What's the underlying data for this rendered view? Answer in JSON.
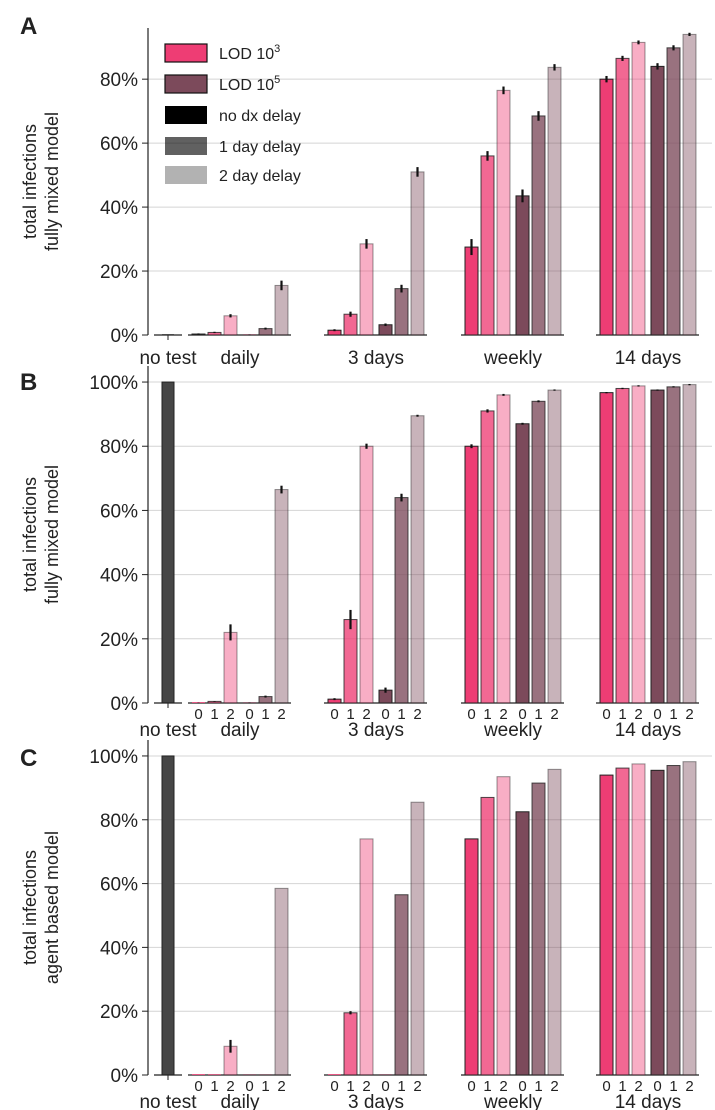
{
  "colors": {
    "lod3": "#ee3d74",
    "lod5": "#7c4a5b",
    "notest": "#464646",
    "grid": "#d4d4d4",
    "axis": "#222222"
  },
  "legend": {
    "entries": [
      {
        "label": "LOD 10",
        "sup": "3"
      },
      {
        "label": "LOD 10",
        "sup": "5"
      },
      {
        "label": "no dx delay"
      },
      {
        "label": "1 day delay"
      },
      {
        "label": "2 day delay"
      }
    ]
  },
  "chart_data": [
    {
      "panel": "A",
      "type": "bar",
      "ylabel": [
        "total infections",
        "fully mixed model"
      ],
      "ylim": [
        0,
        0.96
      ],
      "yticks": [
        0,
        0.2,
        0.4,
        0.6,
        0.8
      ],
      "yticklabels": [
        "0%",
        "20%",
        "40%",
        "60%",
        "80%"
      ],
      "grid": true,
      "legend_position": "top-left",
      "groups": [
        "no test",
        "daily",
        "3 days",
        "weekly",
        "14 days"
      ],
      "delay_labels": [],
      "no_test": {
        "value": 0.0,
        "err": 0
      },
      "series": [
        {
          "name": "LOD 10^3",
          "delay_days": [
            0,
            1,
            2
          ],
          "values": [
            [
              0.003,
              0.008,
              0.06
            ],
            [
              0.015,
              0.065,
              0.285
            ],
            [
              0.275,
              0.56,
              0.765
            ],
            [
              0.8,
              0.865,
              0.915
            ]
          ],
          "errors": [
            [
              0.002,
              0.002,
              0.005
            ],
            [
              0.003,
              0.008,
              0.015
            ],
            [
              0.025,
              0.015,
              0.012
            ],
            [
              0.01,
              0.008,
              0.006
            ]
          ]
        },
        {
          "name": "LOD 10^5",
          "delay_days": [
            0,
            1,
            2
          ],
          "values": [
            [
              0.0,
              0.02,
              0.155
            ],
            [
              0.032,
              0.145,
              0.51
            ],
            [
              0.435,
              0.685,
              0.837
            ],
            [
              0.84,
              0.898,
              0.94
            ]
          ],
          "errors": [
            [
              0.001,
              0.003,
              0.015
            ],
            [
              0.004,
              0.012,
              0.015
            ],
            [
              0.02,
              0.015,
              0.01
            ],
            [
              0.01,
              0.008,
              0.005
            ]
          ]
        }
      ]
    },
    {
      "panel": "B",
      "type": "bar",
      "ylabel": [
        "total infections",
        "fully mixed model"
      ],
      "ylim": [
        0,
        1.05
      ],
      "yticks": [
        0,
        0.2,
        0.4,
        0.6,
        0.8,
        1.0
      ],
      "yticklabels": [
        "0%",
        "20%",
        "40%",
        "60%",
        "80%",
        "100%"
      ],
      "grid": true,
      "groups": [
        "no test",
        "daily",
        "3 days",
        "weekly",
        "14 days"
      ],
      "delay_labels": [
        "0",
        "1",
        "2"
      ],
      "no_test": {
        "value": 1.0,
        "err": 0
      },
      "series": [
        {
          "name": "LOD 10^3",
          "delay_days": [
            0,
            1,
            2
          ],
          "values": [
            [
              0.0,
              0.005,
              0.22
            ],
            [
              0.012,
              0.26,
              0.8
            ],
            [
              0.8,
              0.91,
              0.96
            ],
            [
              0.967,
              0.98,
              0.988
            ]
          ],
          "errors": [
            [
              0.001,
              0.001,
              0.025
            ],
            [
              0.003,
              0.03,
              0.008
            ],
            [
              0.006,
              0.005,
              0.003
            ],
            [
              0.002,
              0.002,
              0.002
            ]
          ]
        },
        {
          "name": "LOD 10^5",
          "delay_days": [
            0,
            1,
            2
          ],
          "values": [
            [
              0.0,
              0.02,
              0.665
            ],
            [
              0.04,
              0.64,
              0.895
            ],
            [
              0.87,
              0.94,
              0.975
            ],
            [
              0.975,
              0.985,
              0.992
            ]
          ],
          "errors": [
            [
              0.001,
              0.003,
              0.012
            ],
            [
              0.008,
              0.012,
              0.003
            ],
            [
              0.003,
              0.003,
              0.002
            ],
            [
              0.002,
              0.002,
              0.002
            ]
          ]
        }
      ]
    },
    {
      "panel": "C",
      "type": "bar",
      "ylabel": [
        "total infections",
        "agent based model"
      ],
      "ylim": [
        0,
        1.05
      ],
      "yticks": [
        0,
        0.2,
        0.4,
        0.6,
        0.8,
        1.0
      ],
      "yticklabels": [
        "0%",
        "20%",
        "40%",
        "60%",
        "80%",
        "100%"
      ],
      "grid": true,
      "groups": [
        "no test",
        "daily",
        "3 days",
        "weekly",
        "14 days"
      ],
      "delay_labels": [
        "0",
        "1",
        "2"
      ],
      "no_test": {
        "value": 1.0,
        "err": 0
      },
      "series": [
        {
          "name": "LOD 10^3",
          "delay_days": [
            0,
            1,
            2
          ],
          "values": [
            [
              0.0,
              0.0,
              0.09
            ],
            [
              0.0,
              0.195,
              0.74
            ],
            [
              0.74,
              0.87,
              0.935
            ],
            [
              0.94,
              0.962,
              0.975
            ]
          ],
          "errors": [
            [
              0,
              0,
              0.02
            ],
            [
              0,
              0.005,
              0
            ],
            [
              0,
              0,
              0
            ],
            [
              0,
              0,
              0
            ]
          ]
        },
        {
          "name": "LOD 10^5",
          "delay_days": [
            0,
            1,
            2
          ],
          "values": [
            [
              0.0,
              0.0,
              0.585
            ],
            [
              0.0,
              0.565,
              0.855
            ],
            [
              0.825,
              0.915,
              0.958
            ],
            [
              0.955,
              0.97,
              0.982
            ]
          ],
          "errors": [
            [
              0,
              0,
              0
            ],
            [
              0,
              0,
              0
            ],
            [
              0,
              0,
              0
            ],
            [
              0,
              0,
              0
            ]
          ]
        }
      ]
    }
  ]
}
